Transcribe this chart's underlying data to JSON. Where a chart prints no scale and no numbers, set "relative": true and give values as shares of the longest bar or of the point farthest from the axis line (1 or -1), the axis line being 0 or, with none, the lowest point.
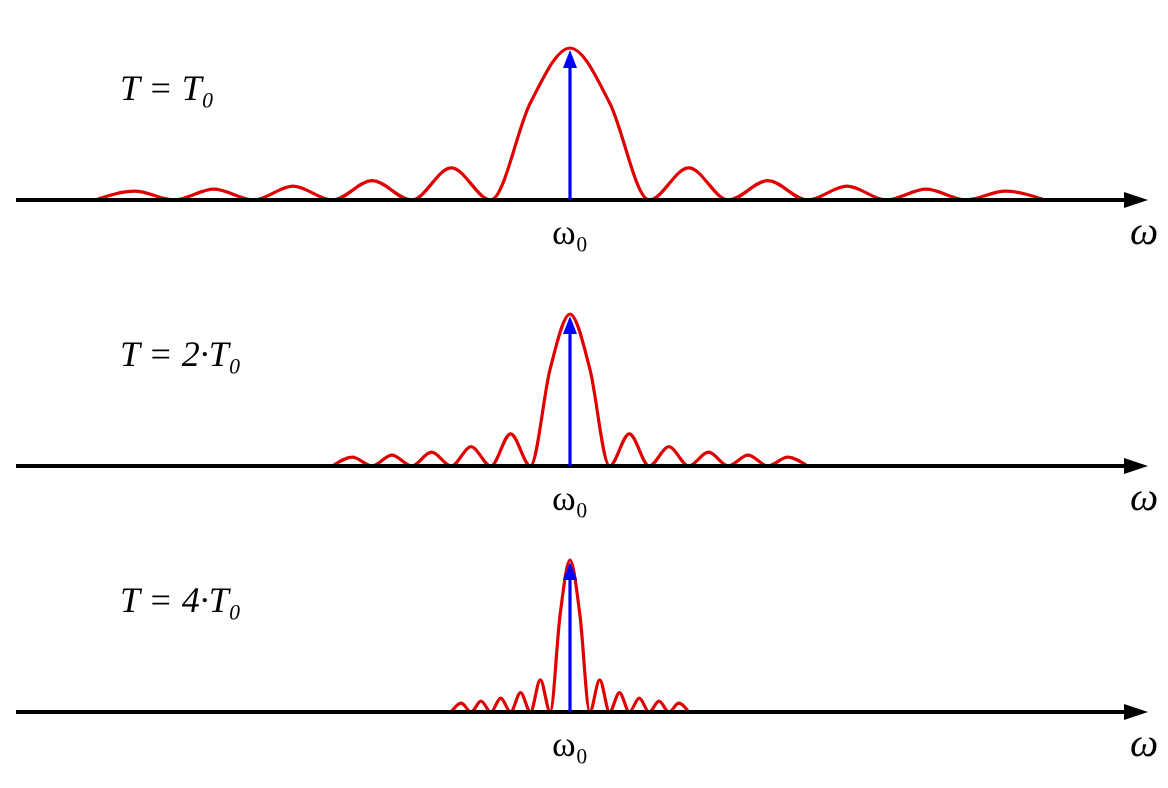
{
  "chart_data": [
    {
      "type": "line",
      "title": "T = T₀",
      "xlabel": "ω",
      "annotations": [
        "ω₀"
      ],
      "relative": true,
      "legend": false,
      "grid": false,
      "marker": "none",
      "categories": [
        null,
        null,
        null,
        null,
        null,
        null,
        null,
        null,
        null,
        null,
        null,
        null,
        null,
        null,
        null,
        null,
        null,
        null,
        null,
        null,
        null,
        null,
        null,
        null,
        null,
        null,
        null,
        null,
        null
      ],
      "series": [
        {
          "color": "#e00000",
          "values": [
            null,
            null,
            0,
            0.058,
            0,
            0.071,
            0,
            0.091,
            0,
            0.127,
            0,
            0.212,
            0,
            0.64,
            1,
            0.64,
            0,
            0.212,
            0,
            0.127,
            0,
            0.091,
            0,
            0.071,
            0,
            0.058,
            0,
            null,
            null
          ]
        }
      ]
    },
    {
      "type": "line",
      "title": "T = 2·T₀",
      "xlabel": "ω",
      "annotations": [
        "ω₀"
      ],
      "relative": true,
      "legend": false,
      "grid": false,
      "marker": "none",
      "categories": [
        null,
        null,
        null,
        null,
        null,
        null,
        null,
        null,
        null,
        null,
        null,
        null,
        null,
        null,
        null,
        null,
        null,
        null,
        null,
        null,
        null,
        null,
        null,
        null,
        null,
        null,
        null,
        null,
        null,
        null,
        null,
        null,
        null,
        null,
        null,
        null,
        null,
        null,
        null,
        null,
        null,
        null,
        null,
        null,
        null,
        null,
        null,
        null,
        null,
        null,
        null,
        null,
        null,
        null,
        null,
        null,
        null
      ],
      "series": [
        {
          "color": "#e00000",
          "values": [
            null,
            null,
            null,
            null,
            null,
            null,
            null,
            null,
            null,
            null,
            null,
            null,
            null,
            null,
            null,
            null,
            0,
            0.058,
            0,
            0.071,
            0,
            0.091,
            0,
            0.127,
            0,
            0.212,
            0,
            0.64,
            1,
            0.64,
            0,
            0.212,
            0,
            0.127,
            0,
            0.091,
            0,
            0.071,
            0,
            0.058,
            0,
            null,
            null,
            null,
            null,
            null,
            null,
            null,
            null,
            null,
            null,
            null,
            null,
            null,
            null,
            null,
            null
          ]
        }
      ]
    },
    {
      "type": "line",
      "title": "T = 4·T₀",
      "xlabel": "ω",
      "annotations": [
        "ω₀"
      ],
      "relative": true,
      "legend": false,
      "grid": false,
      "marker": "none",
      "categories": [
        null,
        null,
        null,
        null,
        null,
        null,
        null,
        null,
        null,
        null,
        null,
        null,
        null,
        null,
        null,
        null,
        null,
        null,
        null,
        null,
        null,
        null,
        null,
        null,
        null,
        null,
        null,
        null,
        null,
        null,
        null,
        null,
        null,
        null,
        null,
        null,
        null,
        null,
        null,
        null,
        null,
        null,
        null,
        null,
        null,
        null,
        null,
        null,
        null,
        null,
        null,
        null,
        null,
        null,
        null,
        null,
        null,
        null,
        null,
        null,
        null,
        null,
        null,
        null,
        null,
        null,
        null,
        null,
        null,
        null,
        null,
        null,
        null,
        null,
        null,
        null,
        null,
        null,
        null,
        null,
        null,
        null,
        null,
        null,
        null,
        null,
        null,
        null,
        null,
        null,
        null,
        null,
        null,
        null,
        null,
        null,
        null,
        null,
        null,
        null,
        null,
        null,
        null,
        null,
        null,
        null,
        null,
        null,
        null,
        null,
        null,
        null,
        null
      ],
      "series": [
        {
          "color": "#e00000",
          "values": [
            null,
            null,
            null,
            null,
            null,
            null,
            null,
            null,
            null,
            null,
            null,
            null,
            null,
            null,
            null,
            null,
            null,
            null,
            null,
            null,
            null,
            null,
            null,
            null,
            null,
            null,
            null,
            null,
            null,
            null,
            null,
            null,
            null,
            null,
            null,
            null,
            null,
            null,
            null,
            null,
            null,
            null,
            null,
            null,
            0,
            0.058,
            0,
            0.071,
            0,
            0.091,
            0,
            0.127,
            0,
            0.212,
            0,
            0.64,
            1,
            0.64,
            0,
            0.212,
            0,
            0.127,
            0,
            0.091,
            0,
            0.071,
            0,
            0.058,
            0,
            null,
            null,
            null,
            null,
            null,
            null,
            null,
            null,
            null,
            null,
            null,
            null,
            null,
            null,
            null,
            null,
            null,
            null,
            null,
            null,
            null,
            null,
            null,
            null,
            null,
            null,
            null,
            null,
            null,
            null,
            null,
            null,
            null,
            null,
            null,
            null,
            null,
            null,
            null,
            null,
            null,
            null,
            null,
            null
          ]
        }
      ]
    }
  ]
}
